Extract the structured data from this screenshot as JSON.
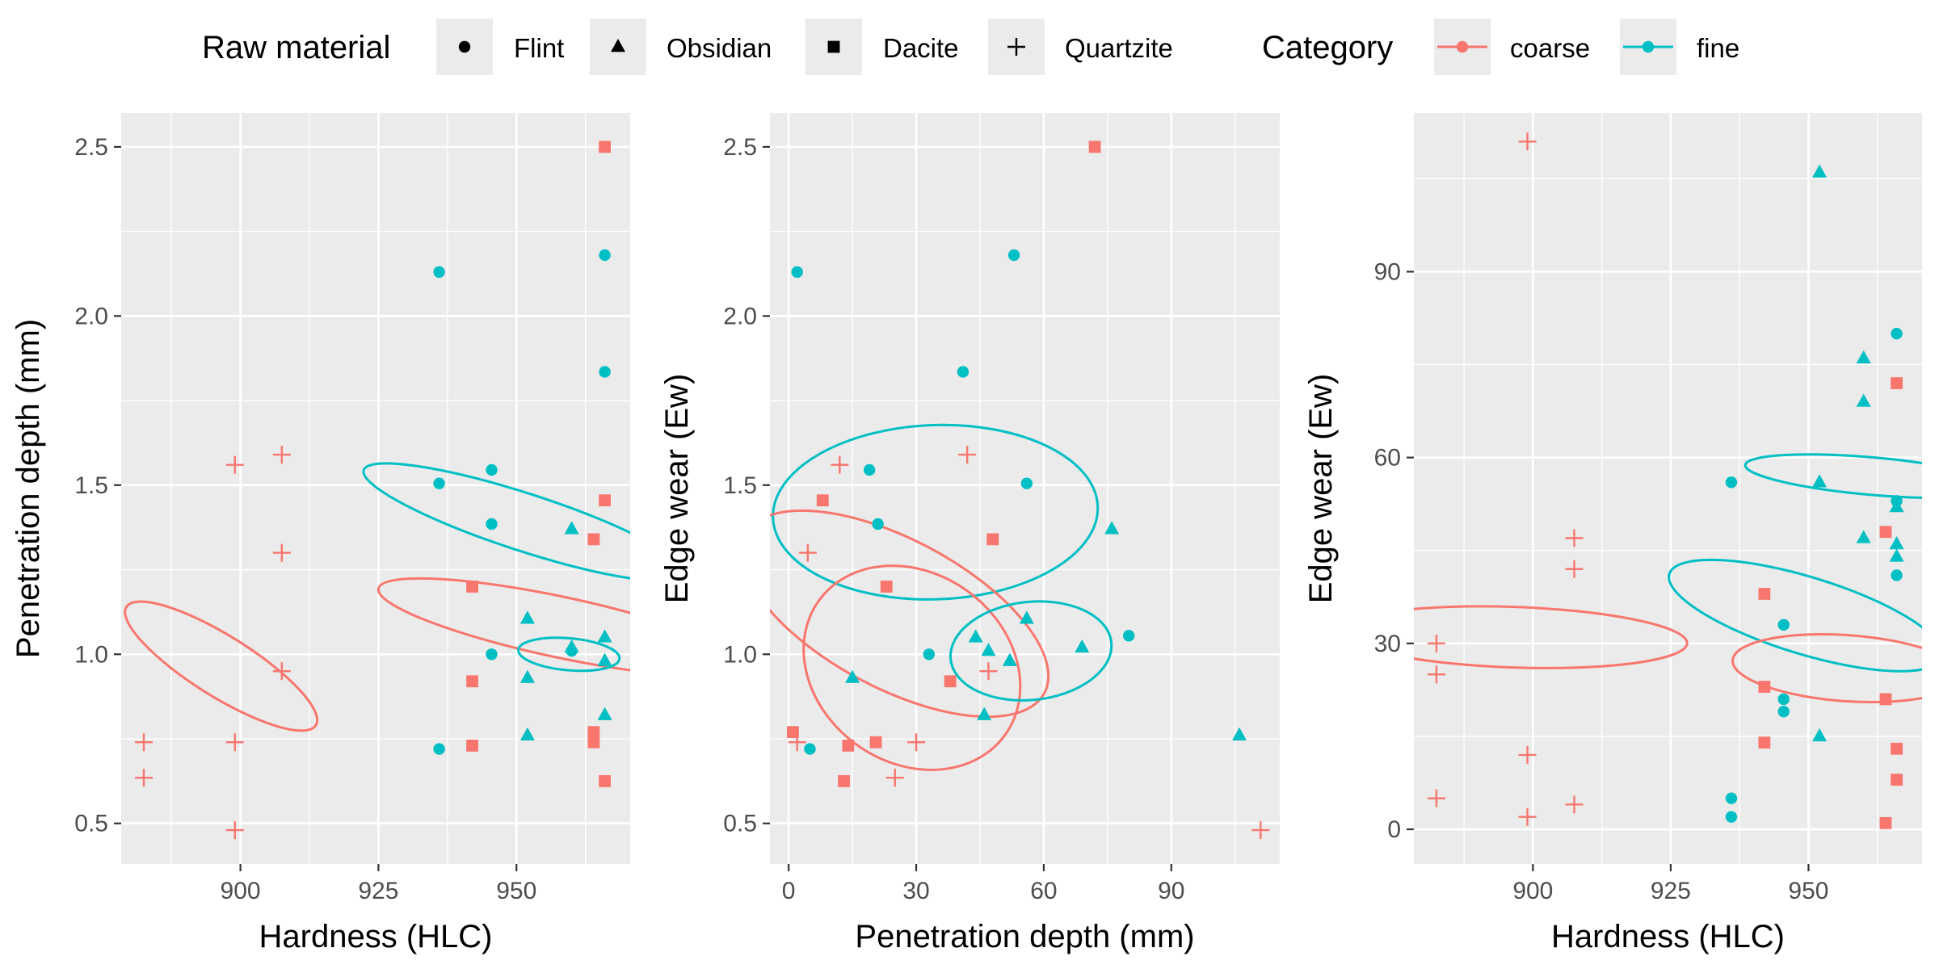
{
  "legend": {
    "shape_title": "Raw material",
    "shape_items": [
      {
        "label": "Flint",
        "shape": "circle"
      },
      {
        "label": "Obsidian",
        "shape": "triangle"
      },
      {
        "label": "Dacite",
        "shape": "square"
      },
      {
        "label": "Quartzite",
        "shape": "plus"
      }
    ],
    "color_title": "Category",
    "color_items": [
      {
        "label": "coarse",
        "color": "#F8766D"
      },
      {
        "label": "fine",
        "color": "#00BFC4"
      }
    ],
    "placement": "top"
  },
  "chart_data": [
    {
      "type": "scatter",
      "title": "",
      "xlabel": "Hardness (HLC)",
      "ylabel": "Penetration depth (mm)",
      "xlim": [
        878.4,
        970.6
      ],
      "ylim": [
        0.38,
        2.6
      ],
      "xticks": [
        900,
        925,
        950
      ],
      "yticks": [
        0.5,
        1.0,
        1.5,
        2.0,
        2.5
      ],
      "ytick_labels": [
        "0.5",
        "1.0",
        "1.5",
        "2.0",
        "2.5"
      ],
      "grid": true,
      "points": [
        {
          "x": 882.5,
          "y": 0.74,
          "shape": "plus",
          "cat": "coarse"
        },
        {
          "x": 882.5,
          "y": 0.635,
          "shape": "plus",
          "cat": "coarse"
        },
        {
          "x": 899,
          "y": 1.56,
          "shape": "plus",
          "cat": "coarse"
        },
        {
          "x": 899,
          "y": 0.74,
          "shape": "plus",
          "cat": "coarse"
        },
        {
          "x": 899,
          "y": 0.48,
          "shape": "plus",
          "cat": "coarse"
        },
        {
          "x": 907.5,
          "y": 1.59,
          "shape": "plus",
          "cat": "coarse"
        },
        {
          "x": 907.5,
          "y": 1.3,
          "shape": "plus",
          "cat": "coarse"
        },
        {
          "x": 907.5,
          "y": 0.95,
          "shape": "plus",
          "cat": "coarse"
        },
        {
          "x": 936,
          "y": 2.13,
          "shape": "circle",
          "cat": "fine"
        },
        {
          "x": 936,
          "y": 1.505,
          "shape": "circle",
          "cat": "fine"
        },
        {
          "x": 936,
          "y": 0.72,
          "shape": "circle",
          "cat": "fine"
        },
        {
          "x": 942,
          "y": 1.2,
          "shape": "square",
          "cat": "coarse"
        },
        {
          "x": 942,
          "y": 0.92,
          "shape": "square",
          "cat": "coarse"
        },
        {
          "x": 942,
          "y": 0.73,
          "shape": "square",
          "cat": "coarse"
        },
        {
          "x": 945.5,
          "y": 1.545,
          "shape": "circle",
          "cat": "fine"
        },
        {
          "x": 945.5,
          "y": 1.385,
          "shape": "circle",
          "cat": "fine"
        },
        {
          "x": 945.5,
          "y": 1.0,
          "shape": "circle",
          "cat": "fine"
        },
        {
          "x": 952,
          "y": 1.105,
          "shape": "triangle",
          "cat": "fine"
        },
        {
          "x": 952,
          "y": 0.93,
          "shape": "triangle",
          "cat": "fine"
        },
        {
          "x": 952,
          "y": 0.76,
          "shape": "triangle",
          "cat": "fine"
        },
        {
          "x": 960,
          "y": 1.37,
          "shape": "triangle",
          "cat": "fine"
        },
        {
          "x": 960,
          "y": 1.02,
          "shape": "triangle",
          "cat": "fine"
        },
        {
          "x": 960,
          "y": 1.01,
          "shape": "circle",
          "cat": "fine"
        },
        {
          "x": 964,
          "y": 1.34,
          "shape": "square",
          "cat": "coarse"
        },
        {
          "x": 964,
          "y": 0.77,
          "shape": "square",
          "cat": "coarse"
        },
        {
          "x": 964,
          "y": 0.74,
          "shape": "square",
          "cat": "coarse"
        },
        {
          "x": 966,
          "y": 2.5,
          "shape": "square",
          "cat": "coarse"
        },
        {
          "x": 966,
          "y": 1.455,
          "shape": "square",
          "cat": "coarse"
        },
        {
          "x": 966,
          "y": 0.625,
          "shape": "square",
          "cat": "coarse"
        },
        {
          "x": 966,
          "y": 2.18,
          "shape": "circle",
          "cat": "fine"
        },
        {
          "x": 966,
          "y": 1.835,
          "shape": "circle",
          "cat": "fine"
        },
        {
          "x": 966,
          "y": 1.05,
          "shape": "triangle",
          "cat": "fine"
        },
        {
          "x": 966,
          "y": 0.98,
          "shape": "triangle",
          "cat": "fine"
        },
        {
          "x": 966,
          "y": 0.82,
          "shape": "triangle",
          "cat": "fine"
        }
      ],
      "ellipses": [
        {
          "cat": "coarse",
          "cx": 896.5,
          "cy": 0.965,
          "rx": 5.5,
          "ry": 0.33,
          "angle_deg": -58
        },
        {
          "cat": "fine",
          "cx": 951.5,
          "cy": 1.39,
          "rx": 5.2,
          "ry": 0.5,
          "angle_deg": -72
        },
        {
          "cat": "coarse",
          "cx": 958,
          "cy": 1.08,
          "rx": 5.5,
          "ry": 0.55,
          "angle_deg": -78
        },
        {
          "cat": "fine",
          "cx": 959.5,
          "cy": 1.0,
          "rx": 2.9,
          "ry": 0.15,
          "angle_deg": -85
        }
      ]
    },
    {
      "type": "scatter",
      "title": "",
      "xlabel": "Penetration depth (mm)",
      "ylabel": "Edge wear (Ew)",
      "xlim": [
        -4.4,
        115.5
      ],
      "ylim": [
        0.38,
        2.6
      ],
      "xticks": [
        0,
        30,
        60,
        90
      ],
      "yticks": [
        0.5,
        1.0,
        1.5,
        2.0,
        2.5
      ],
      "ytick_labels": [
        "0.5",
        "1.0",
        "1.5",
        "2.0",
        "2.5"
      ],
      "grid": true,
      "points": [
        {
          "x": 1,
          "y": 0.77,
          "shape": "square",
          "cat": "coarse"
        },
        {
          "x": 2,
          "y": 2.13,
          "shape": "circle",
          "cat": "fine"
        },
        {
          "x": 2,
          "y": 0.74,
          "shape": "plus",
          "cat": "coarse"
        },
        {
          "x": 4.5,
          "y": 1.3,
          "shape": "plus",
          "cat": "coarse"
        },
        {
          "x": 5,
          "y": 0.72,
          "shape": "circle",
          "cat": "fine"
        },
        {
          "x": 8,
          "y": 1.455,
          "shape": "square",
          "cat": "coarse"
        },
        {
          "x": 12,
          "y": 1.56,
          "shape": "plus",
          "cat": "coarse"
        },
        {
          "x": 13,
          "y": 0.625,
          "shape": "square",
          "cat": "coarse"
        },
        {
          "x": 14,
          "y": 0.73,
          "shape": "square",
          "cat": "coarse"
        },
        {
          "x": 15,
          "y": 0.93,
          "shape": "triangle",
          "cat": "fine"
        },
        {
          "x": 19,
          "y": 1.545,
          "shape": "circle",
          "cat": "fine"
        },
        {
          "x": 20.5,
          "y": 0.74,
          "shape": "square",
          "cat": "coarse"
        },
        {
          "x": 21,
          "y": 1.385,
          "shape": "circle",
          "cat": "fine"
        },
        {
          "x": 23,
          "y": 1.2,
          "shape": "square",
          "cat": "coarse"
        },
        {
          "x": 25,
          "y": 0.635,
          "shape": "plus",
          "cat": "coarse"
        },
        {
          "x": 30,
          "y": 0.74,
          "shape": "plus",
          "cat": "coarse"
        },
        {
          "x": 33,
          "y": 1.0,
          "shape": "circle",
          "cat": "fine"
        },
        {
          "x": 38,
          "y": 0.92,
          "shape": "square",
          "cat": "coarse"
        },
        {
          "x": 41,
          "y": 1.835,
          "shape": "circle",
          "cat": "fine"
        },
        {
          "x": 42,
          "y": 1.59,
          "shape": "plus",
          "cat": "coarse"
        },
        {
          "x": 44,
          "y": 1.05,
          "shape": "triangle",
          "cat": "fine"
        },
        {
          "x": 46,
          "y": 0.82,
          "shape": "triangle",
          "cat": "fine"
        },
        {
          "x": 47,
          "y": 1.01,
          "shape": "triangle",
          "cat": "fine"
        },
        {
          "x": 47,
          "y": 0.95,
          "shape": "plus",
          "cat": "coarse"
        },
        {
          "x": 48,
          "y": 1.34,
          "shape": "square",
          "cat": "coarse"
        },
        {
          "x": 52,
          "y": 0.98,
          "shape": "triangle",
          "cat": "fine"
        },
        {
          "x": 53,
          "y": 2.18,
          "shape": "circle",
          "cat": "fine"
        },
        {
          "x": 56,
          "y": 1.505,
          "shape": "circle",
          "cat": "fine"
        },
        {
          "x": 56,
          "y": 1.105,
          "shape": "triangle",
          "cat": "fine"
        },
        {
          "x": 69,
          "y": 1.02,
          "shape": "triangle",
          "cat": "fine"
        },
        {
          "x": 72,
          "y": 2.5,
          "shape": "square",
          "cat": "coarse"
        },
        {
          "x": 76,
          "y": 1.37,
          "shape": "triangle",
          "cat": "fine"
        },
        {
          "x": 80,
          "y": 1.055,
          "shape": "circle",
          "cat": "fine"
        },
        {
          "x": 106,
          "y": 0.76,
          "shape": "triangle",
          "cat": "fine"
        },
        {
          "x": 111,
          "y": 0.48,
          "shape": "plus",
          "cat": "coarse"
        }
      ],
      "ellipses": [
        {
          "cat": "fine",
          "cx": 34.5,
          "cy": 1.42,
          "rx": 20.5,
          "ry": 0.48,
          "angle_deg": -92
        },
        {
          "cat": "coarse",
          "cx": 25,
          "cy": 1.12,
          "rx": 17.5,
          "ry": 0.5,
          "angle_deg": -62
        },
        {
          "cat": "coarse",
          "cx": 29,
          "cy": 0.96,
          "rx": 27,
          "ry": 0.28,
          "angle_deg": 36
        },
        {
          "cat": "fine",
          "cx": 57,
          "cy": 1.01,
          "rx": 19,
          "ry": 0.145,
          "angle_deg": -6
        }
      ]
    },
    {
      "type": "scatter",
      "title": "",
      "xlabel": "Hardness (HLC)",
      "ylabel": "Edge wear (Ew)",
      "xlim": [
        878.4,
        970.6
      ],
      "ylim": [
        -5.6,
        115.6
      ],
      "xticks": [
        900,
        925,
        950
      ],
      "yticks": [
        0,
        30,
        60,
        90
      ],
      "ytick_labels": [
        "0",
        "30",
        "60",
        "90"
      ],
      "grid": true,
      "points": [
        {
          "x": 882.5,
          "y": 30,
          "shape": "plus",
          "cat": "coarse"
        },
        {
          "x": 882.5,
          "y": 25,
          "shape": "plus",
          "cat": "coarse"
        },
        {
          "x": 882.5,
          "y": 5,
          "shape": "plus",
          "cat": "coarse"
        },
        {
          "x": 899,
          "y": 111,
          "shape": "plus",
          "cat": "coarse"
        },
        {
          "x": 899,
          "y": 12,
          "shape": "plus",
          "cat": "coarse"
        },
        {
          "x": 899,
          "y": 2,
          "shape": "plus",
          "cat": "coarse"
        },
        {
          "x": 907.5,
          "y": 47,
          "shape": "plus",
          "cat": "coarse"
        },
        {
          "x": 907.5,
          "y": 42,
          "shape": "plus",
          "cat": "coarse"
        },
        {
          "x": 907.5,
          "y": 4,
          "shape": "plus",
          "cat": "coarse"
        },
        {
          "x": 936,
          "y": 56,
          "shape": "circle",
          "cat": "fine"
        },
        {
          "x": 936,
          "y": 5,
          "shape": "circle",
          "cat": "fine"
        },
        {
          "x": 936,
          "y": 2,
          "shape": "circle",
          "cat": "fine"
        },
        {
          "x": 942,
          "y": 38,
          "shape": "square",
          "cat": "coarse"
        },
        {
          "x": 942,
          "y": 23,
          "shape": "square",
          "cat": "coarse"
        },
        {
          "x": 942,
          "y": 14,
          "shape": "square",
          "cat": "coarse"
        },
        {
          "x": 945.5,
          "y": 33,
          "shape": "circle",
          "cat": "fine"
        },
        {
          "x": 945.5,
          "y": 21,
          "shape": "circle",
          "cat": "fine"
        },
        {
          "x": 945.5,
          "y": 19,
          "shape": "circle",
          "cat": "fine"
        },
        {
          "x": 952,
          "y": 106,
          "shape": "triangle",
          "cat": "fine"
        },
        {
          "x": 952,
          "y": 56,
          "shape": "triangle",
          "cat": "fine"
        },
        {
          "x": 952,
          "y": 15,
          "shape": "triangle",
          "cat": "fine"
        },
        {
          "x": 960,
          "y": 76,
          "shape": "triangle",
          "cat": "fine"
        },
        {
          "x": 960,
          "y": 69,
          "shape": "triangle",
          "cat": "fine"
        },
        {
          "x": 960,
          "y": 47,
          "shape": "triangle",
          "cat": "fine"
        },
        {
          "x": 964,
          "y": 48,
          "shape": "square",
          "cat": "coarse"
        },
        {
          "x": 964,
          "y": 21,
          "shape": "square",
          "cat": "coarse"
        },
        {
          "x": 964,
          "y": 1,
          "shape": "square",
          "cat": "coarse"
        },
        {
          "x": 966,
          "y": 72,
          "shape": "square",
          "cat": "coarse"
        },
        {
          "x": 966,
          "y": 13,
          "shape": "square",
          "cat": "coarse"
        },
        {
          "x": 966,
          "y": 8,
          "shape": "square",
          "cat": "coarse"
        },
        {
          "x": 966,
          "y": 80,
          "shape": "circle",
          "cat": "fine"
        },
        {
          "x": 966,
          "y": 53,
          "shape": "circle",
          "cat": "fine"
        },
        {
          "x": 966,
          "y": 41,
          "shape": "circle",
          "cat": "fine"
        },
        {
          "x": 966,
          "y": 52,
          "shape": "triangle",
          "cat": "fine"
        },
        {
          "x": 966,
          "y": 46,
          "shape": "triangle",
          "cat": "fine"
        },
        {
          "x": 966,
          "y": 44,
          "shape": "triangle",
          "cat": "fine"
        }
      ],
      "ellipses": [
        {
          "cat": "coarse",
          "cx": 896.5,
          "cy": 31,
          "rx": 5.5,
          "ry": 28,
          "angle_deg": -88
        },
        {
          "cat": "fine",
          "cx": 949.5,
          "cy": 34.5,
          "rx": 7,
          "ry": 23,
          "angle_deg": -73
        },
        {
          "cat": "coarse",
          "cx": 957,
          "cy": 26,
          "rx": 6,
          "ry": 18.5,
          "angle_deg": -86
        },
        {
          "cat": "fine",
          "cx": 961.5,
          "cy": 57,
          "rx": 3.4,
          "ry": 20.5,
          "angle_deg": -85
        }
      ]
    }
  ]
}
